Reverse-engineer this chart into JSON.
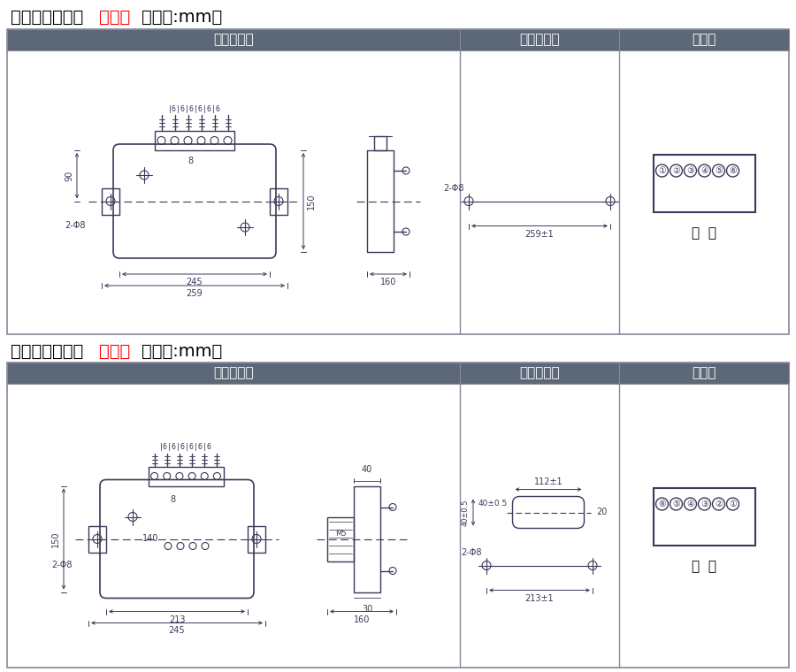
{
  "title1_prefix": "单相过流凸出式",
  "title1_red": "前接线",
  "title1_suffix": "（单位:mm）",
  "title2_prefix": "单相过流凸出式",
  "title2_red": "后接线",
  "title2_suffix": "（单位:mm）",
  "header_bg": "#5c6878",
  "header_fg": "#ffffff",
  "col1_label": "外形尺寸图",
  "col2_label": "安装开孔图",
  "col3_label": "端子图",
  "border_color": "#888899",
  "line_color": "#3a3a5a",
  "dim_color": "#3a3a5a",
  "bg_color": "#ffffff",
  "front_view_label": "前  视",
  "back_view_label": "背  视",
  "circled_1": "①",
  "circled_2": "②",
  "circled_3": "③",
  "circled_4": "④",
  "circled_5": "⑤",
  "circled_6": "⑥"
}
